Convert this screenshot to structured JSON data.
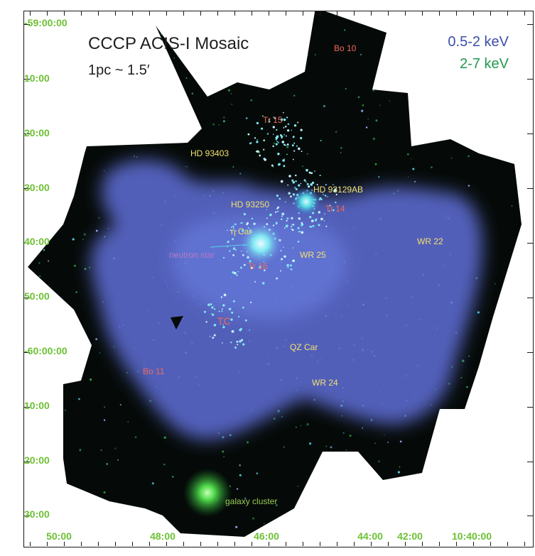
{
  "figure": {
    "title": "CCCP ACIS-I Mosaic",
    "scale_note": "1pc ~ 1.5′",
    "energy_bands": [
      {
        "label": "0.5-2 keV",
        "color": "#3d4ea8"
      },
      {
        "label": "2-7 keV",
        "color": "#1f9a4e"
      }
    ]
  },
  "axes": {
    "dec_ticks": [
      "-59:00:00",
      "10:00",
      "20:00",
      "30:00",
      "40:00",
      "50:00",
      "-60:00:00",
      "10:00",
      "20:00",
      "30:00"
    ],
    "ra_ticks": [
      "50:00",
      "48:00",
      "46:00",
      "44:00",
      "42:00",
      "10:40:00"
    ],
    "tick_color": "#6cc133"
  },
  "annotations": {
    "bo10": "Bo 10",
    "tr15": "Tr 15",
    "hd93403": "HD 93403",
    "hd93129ab": "HD 93129AB",
    "hd93250": "HD 93250",
    "tr14": "Tr 14",
    "eta_car": "η Car",
    "neutron_star": "neutron star",
    "wr25": "WR 25",
    "tr16": "Tr 16",
    "wr22": "WR 22",
    "tc": "TC",
    "qz_car": "QZ Car",
    "bo11": "Bo 11",
    "wr24": "WR 24",
    "galaxy_cluster": "galaxy cluster"
  },
  "colors": {
    "sky_black": "#050a08",
    "diffuse_blue": "#5f6fd8",
    "hard_green": "#35c448",
    "label_yellow": "#f3e06e",
    "label_red": "#ef6a5a",
    "label_magenta": "#b877c8",
    "label_green": "#9ccb55"
  }
}
